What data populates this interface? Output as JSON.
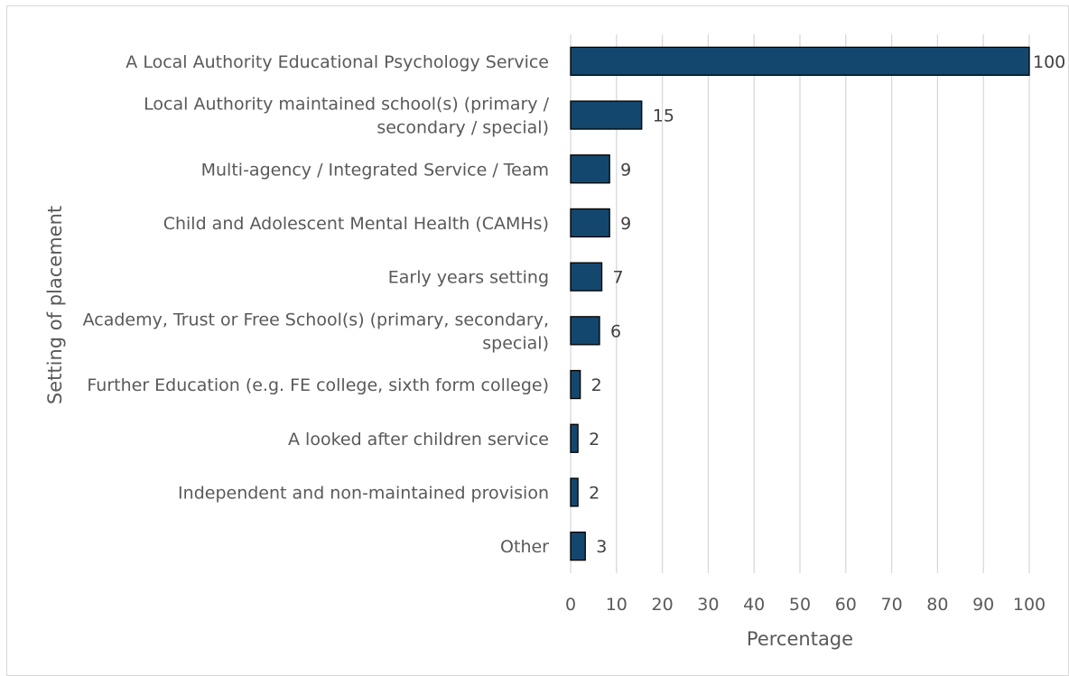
{
  "chart_data": {
    "type": "bar",
    "orientation": "horizontal",
    "categories": [
      "A Local Authority Educational Psychology Service",
      "Local Authority maintained school(s) (primary / secondary / special)",
      "Multi-agency / Integrated Service / Team",
      "Child and Adolescent Mental Health (CAMHs)",
      "Early years setting",
      "Academy, Trust or Free School(s) (primary, secondary, special)",
      "Further Education (e.g. FE college, sixth form college)",
      "A looked after children service",
      "Independent and non-maintained provision",
      "Other"
    ],
    "category_lines": [
      [
        "A Local Authority Educational Psychology Service"
      ],
      [
        "Local Authority maintained school(s) (primary /",
        "secondary / special)"
      ],
      [
        "Multi-agency / Integrated Service / Team"
      ],
      [
        "Child and Adolescent Mental Health (CAMHs)"
      ],
      [
        "Early years setting"
      ],
      [
        "Academy, Trust or Free School(s) (primary, secondary,",
        "special)"
      ],
      [
        "Further Education (e.g. FE college, sixth form college)"
      ],
      [
        "A looked after children service"
      ],
      [
        "Independent and non-maintained provision"
      ],
      [
        "Other"
      ]
    ],
    "values": [
      100,
      15.5,
      8.5,
      8.5,
      6.8,
      6.3,
      2.1,
      1.6,
      1.6,
      3.2
    ],
    "data_labels": [
      "100",
      "15",
      "9",
      "9",
      "7",
      "6",
      "2",
      "2",
      "2",
      "3"
    ],
    "xlabel": "Percentage",
    "ylabel": "Setting of placement",
    "xlim": [
      0,
      100
    ],
    "xticks": [
      "0",
      "10",
      "20",
      "30",
      "40",
      "50",
      "60",
      "70",
      "80",
      "90",
      "100"
    ],
    "grid": "vertical",
    "bar_color": "#14476e",
    "bar_edge_color": "#000000",
    "grid_color": "#d9d9d9"
  }
}
